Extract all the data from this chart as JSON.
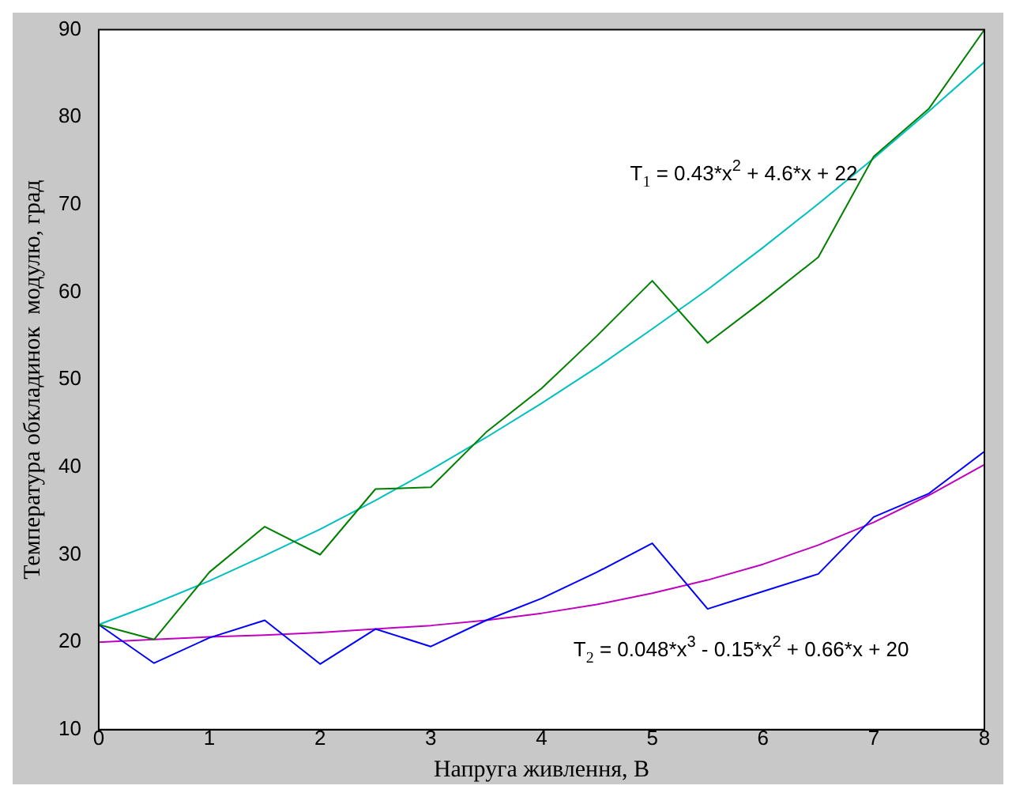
{
  "chart_data": {
    "type": "line",
    "xlabel": "Напруга живлення, В",
    "ylabel": "Температура обкладинок  модулю, град",
    "x": [
      0,
      0.5,
      1,
      1.5,
      2,
      2.5,
      3,
      3.5,
      4,
      4.5,
      5,
      5.5,
      6,
      6.5,
      7,
      7.5,
      8
    ],
    "series": [
      {
        "color": "#008000",
        "values": [
          22,
          20.3,
          28,
          33.2,
          30,
          37.5,
          37.7,
          44,
          49,
          55,
          61.3,
          54.2,
          59,
          64,
          75.5,
          81,
          90
        ]
      },
      {
        "color": "#00bfbf",
        "values": [
          22,
          24.4,
          27,
          29.9,
          32.9,
          36.2,
          39.7,
          43.4,
          47.3,
          51.4,
          55.8,
          60.3,
          65.1,
          70.1,
          75.3,
          80.7,
          86.3
        ]
      },
      {
        "color": "#0000ff",
        "values": [
          22,
          17.6,
          20.5,
          22.5,
          17.5,
          21.5,
          19.5,
          22.5,
          25,
          28,
          31.3,
          23.8,
          25.8,
          27.8,
          34.3,
          37,
          41.8
        ]
      },
      {
        "color": "#bf00bf",
        "values": [
          20,
          20.3,
          20.6,
          20.8,
          21.1,
          21.5,
          21.9,
          22.5,
          23.3,
          24.3,
          25.6,
          27.1,
          28.9,
          31.1,
          33.7,
          36.8,
          40.3
        ]
      }
    ],
    "xlim": [
      0,
      8
    ],
    "xticks": [
      0,
      1,
      2,
      3,
      4,
      5,
      6,
      7,
      8
    ],
    "ylim": [
      10,
      90
    ],
    "yticks": [
      10,
      20,
      30,
      40,
      50,
      60,
      70,
      80,
      90
    ],
    "grid": false,
    "legend": false,
    "marker": "none",
    "line_style": "solid",
    "annotations": [
      "T$_{1}$ = 0.43*x$^{2}$ + 4.6*x + 22",
      "T$_{2}$ = 0.048*x$^{3}$ - 0.15*x$^{2}$ + 0.66*x + 20"
    ]
  }
}
